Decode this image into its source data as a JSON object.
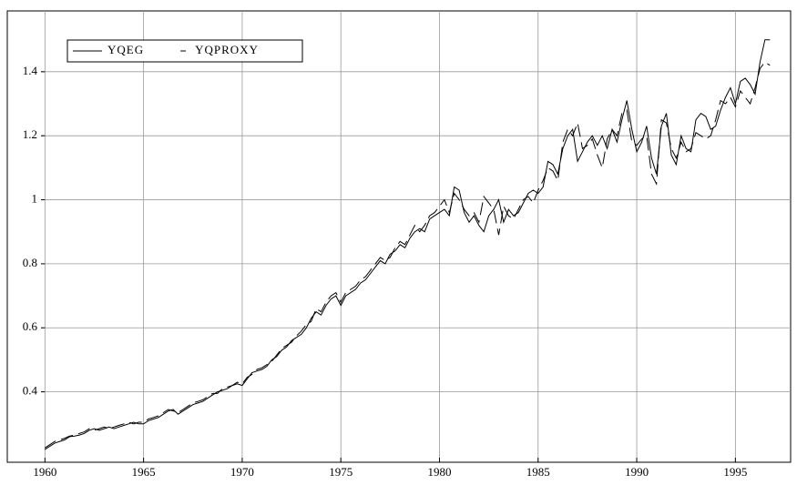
{
  "chart_data": {
    "type": "line",
    "x": [
      1960,
      1960.25,
      1960.5,
      1960.75,
      1961,
      1961.25,
      1961.5,
      1961.75,
      1962,
      1962.25,
      1962.5,
      1962.75,
      1963,
      1963.25,
      1963.5,
      1963.75,
      1964,
      1964.25,
      1964.5,
      1964.75,
      1965,
      1965.25,
      1965.5,
      1965.75,
      1966,
      1966.25,
      1966.5,
      1966.75,
      1967,
      1967.25,
      1967.5,
      1967.75,
      1968,
      1968.25,
      1968.5,
      1968.75,
      1969,
      1969.25,
      1969.5,
      1969.75,
      1970,
      1970.25,
      1970.5,
      1970.75,
      1971,
      1971.25,
      1971.5,
      1971.75,
      1972,
      1972.25,
      1972.5,
      1972.75,
      1973,
      1973.25,
      1973.5,
      1973.75,
      1974,
      1974.25,
      1974.5,
      1974.75,
      1975,
      1975.25,
      1975.5,
      1975.75,
      1976,
      1976.25,
      1976.5,
      1976.75,
      1977,
      1977.25,
      1977.5,
      1977.75,
      1978,
      1978.25,
      1978.5,
      1978.75,
      1979,
      1979.25,
      1979.5,
      1979.75,
      1980,
      1980.25,
      1980.5,
      1980.75,
      1981,
      1981.25,
      1981.5,
      1981.75,
      1982,
      1982.25,
      1982.5,
      1982.75,
      1983,
      1983.25,
      1983.5,
      1983.75,
      1984,
      1984.25,
      1984.5,
      1984.75,
      1985,
      1985.25,
      1985.5,
      1985.75,
      1986,
      1986.25,
      1986.5,
      1986.75,
      1987,
      1987.25,
      1987.5,
      1987.75,
      1988,
      1988.25,
      1988.5,
      1988.75,
      1989,
      1989.25,
      1989.5,
      1989.75,
      1990,
      1990.25,
      1990.5,
      1990.75,
      1991,
      1991.25,
      1991.5,
      1991.75,
      1992,
      1992.25,
      1992.5,
      1992.75,
      1993,
      1993.25,
      1993.5,
      1993.75,
      1994,
      1994.25,
      1994.5,
      1994.75,
      1995,
      1995.25,
      1995.5,
      1995.75,
      1996,
      1996.25,
      1996.5,
      1996.75
    ],
    "series": [
      {
        "name": "YQEG",
        "color": "#000000",
        "dash": false,
        "values": [
          0.22,
          0.23,
          0.24,
          0.245,
          0.25,
          0.26,
          0.262,
          0.265,
          0.27,
          0.28,
          0.285,
          0.28,
          0.285,
          0.29,
          0.285,
          0.29,
          0.295,
          0.3,
          0.305,
          0.3,
          0.3,
          0.31,
          0.315,
          0.32,
          0.33,
          0.34,
          0.345,
          0.33,
          0.34,
          0.35,
          0.36,
          0.365,
          0.37,
          0.38,
          0.39,
          0.4,
          0.405,
          0.41,
          0.42,
          0.425,
          0.42,
          0.44,
          0.46,
          0.465,
          0.47,
          0.48,
          0.5,
          0.51,
          0.53,
          0.54,
          0.56,
          0.57,
          0.58,
          0.6,
          0.63,
          0.65,
          0.64,
          0.67,
          0.69,
          0.7,
          0.67,
          0.7,
          0.71,
          0.72,
          0.74,
          0.75,
          0.77,
          0.79,
          0.81,
          0.8,
          0.83,
          0.84,
          0.86,
          0.85,
          0.88,
          0.9,
          0.91,
          0.9,
          0.94,
          0.95,
          0.96,
          0.97,
          0.95,
          1.04,
          1.03,
          0.96,
          0.93,
          0.95,
          0.92,
          0.9,
          0.95,
          0.97,
          1.0,
          0.93,
          0.97,
          0.95,
          0.96,
          0.99,
          1.02,
          1.03,
          1.02,
          1.04,
          1.12,
          1.11,
          1.08,
          1.16,
          1.2,
          1.22,
          1.12,
          1.15,
          1.18,
          1.2,
          1.17,
          1.2,
          1.16,
          1.22,
          1.18,
          1.25,
          1.31,
          1.22,
          1.15,
          1.18,
          1.23,
          1.13,
          1.08,
          1.23,
          1.27,
          1.14,
          1.11,
          1.2,
          1.16,
          1.15,
          1.25,
          1.27,
          1.26,
          1.22,
          1.23,
          1.28,
          1.32,
          1.35,
          1.3,
          1.37,
          1.38,
          1.36,
          1.33,
          1.43,
          1.5,
          1.5
        ]
      },
      {
        "name": "YQPROXY",
        "color": "#000000",
        "dash": true,
        "values": [
          0.225,
          0.235,
          0.245,
          0.25,
          0.255,
          0.262,
          0.265,
          0.27,
          0.275,
          0.285,
          0.28,
          0.285,
          0.29,
          0.285,
          0.29,
          0.295,
          0.3,
          0.305,
          0.3,
          0.305,
          0.305,
          0.315,
          0.32,
          0.325,
          0.335,
          0.345,
          0.34,
          0.335,
          0.345,
          0.355,
          0.365,
          0.37,
          0.375,
          0.385,
          0.395,
          0.395,
          0.41,
          0.415,
          0.42,
          0.43,
          0.425,
          0.445,
          0.455,
          0.47,
          0.475,
          0.485,
          0.495,
          0.515,
          0.535,
          0.545,
          0.555,
          0.575,
          0.59,
          0.61,
          0.62,
          0.66,
          0.65,
          0.68,
          0.7,
          0.71,
          0.68,
          0.71,
          0.72,
          0.73,
          0.75,
          0.76,
          0.78,
          0.8,
          0.82,
          0.81,
          0.82,
          0.85,
          0.87,
          0.86,
          0.89,
          0.92,
          0.9,
          0.92,
          0.95,
          0.96,
          0.98,
          1.0,
          0.96,
          1.02,
          1.0,
          0.97,
          0.95,
          0.96,
          0.93,
          1.01,
          0.99,
          0.97,
          0.89,
          0.98,
          0.95,
          0.94,
          0.97,
          1.0,
          1.01,
          0.99,
          1.03,
          1.06,
          1.1,
          1.09,
          1.06,
          1.18,
          1.22,
          1.2,
          1.24,
          1.16,
          1.17,
          1.19,
          1.14,
          1.1,
          1.19,
          1.22,
          1.2,
          1.27,
          1.28,
          1.18,
          1.17,
          1.19,
          1.2,
          1.08,
          1.05,
          1.25,
          1.24,
          1.16,
          1.13,
          1.18,
          1.15,
          1.16,
          1.21,
          1.2,
          1.19,
          1.2,
          1.25,
          1.31,
          1.3,
          1.32,
          1.29,
          1.34,
          1.32,
          1.3,
          1.35,
          1.41,
          1.43,
          1.42
        ]
      }
    ],
    "xlim": [
      1959.8,
      1997.8
    ],
    "ylim": [
      0.18,
      1.59
    ],
    "xticks": [
      1960,
      1965,
      1970,
      1975,
      1980,
      1985,
      1990,
      1995
    ],
    "yticks": [
      0.4,
      0.6,
      0.8,
      1.0,
      1.2,
      1.4
    ],
    "grid": true,
    "legend": "upper left"
  }
}
